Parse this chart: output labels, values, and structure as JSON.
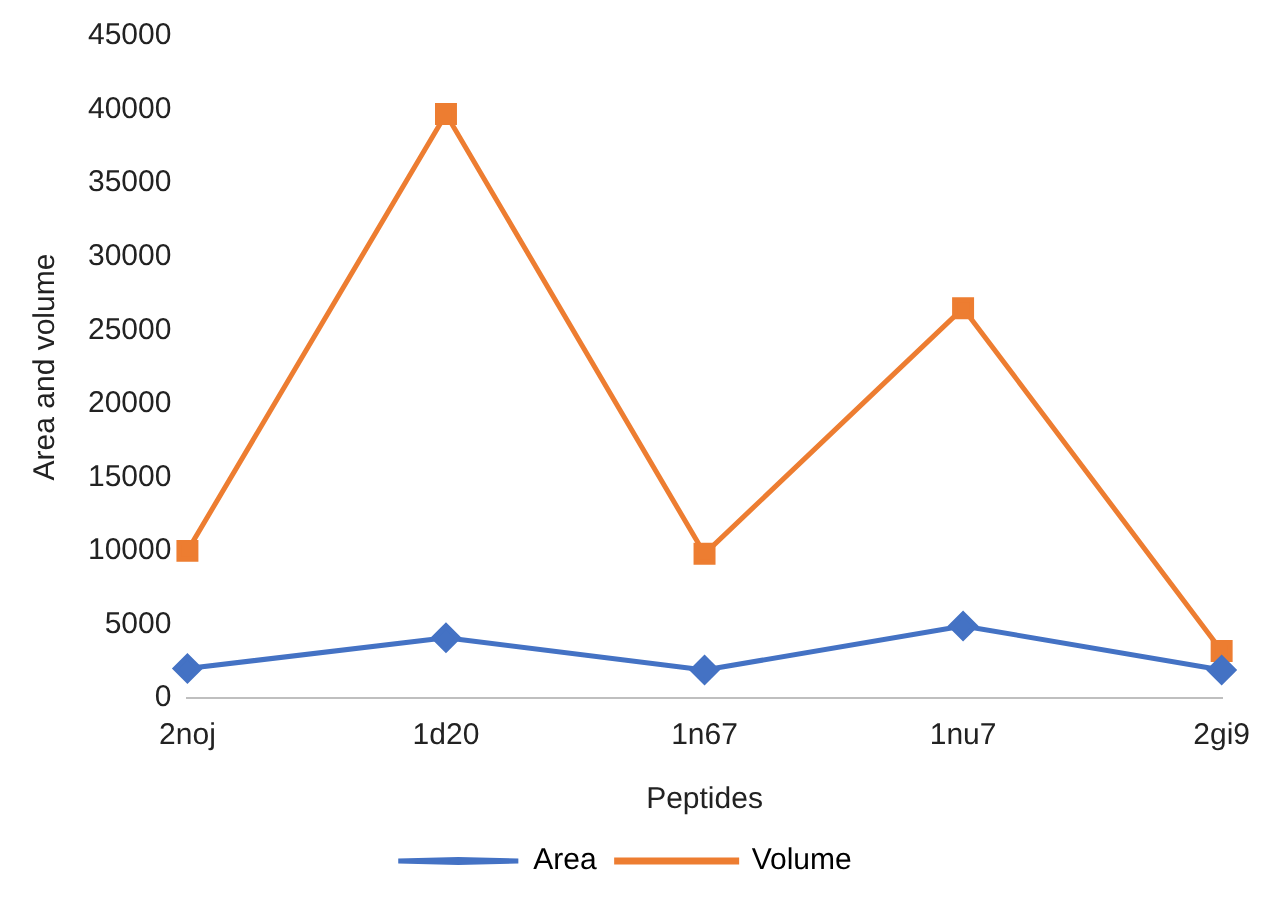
{
  "chart_data": {
    "type": "line",
    "xlabel": "Peptides",
    "ylabel": "Area and volume",
    "categories": [
      "2noj",
      "1d20",
      "1n67",
      "1nu7",
      "2gi9"
    ],
    "series": [
      {
        "name": "Area",
        "color": "#4472c4",
        "marker": "diamond",
        "values": [
          2000,
          4100,
          1900,
          4900,
          1900
        ]
      },
      {
        "name": "Volume",
        "color": "#ed7d31",
        "marker": "square",
        "values": [
          10000,
          39700,
          9800,
          26500,
          3200
        ]
      }
    ],
    "ylim": [
      0,
      45000
    ],
    "yticks": [
      0,
      5000,
      10000,
      15000,
      20000,
      25000,
      30000,
      35000,
      40000,
      45000
    ],
    "grid": false,
    "legend": "bottom",
    "line_style": "solid"
  }
}
